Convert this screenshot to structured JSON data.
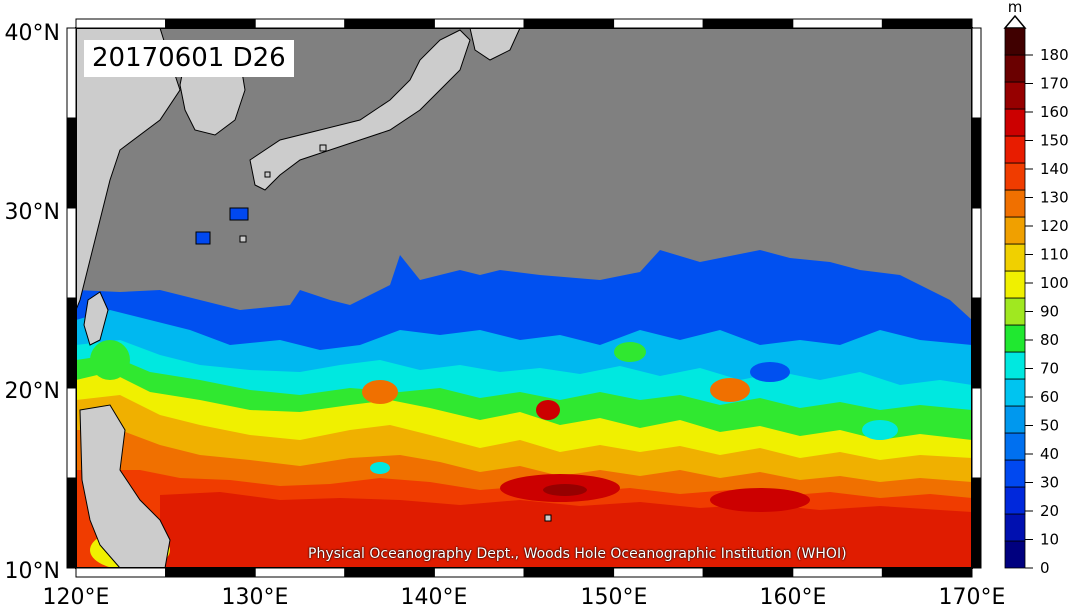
{
  "map": {
    "stamp": "20170601 D26",
    "credit": "Physical Oceanography Dept., Woods Hole Oceanographic Institution (WHOI)",
    "lat_labels": [
      "40°N",
      "30°N",
      "20°N",
      "10°N"
    ],
    "lon_labels": [
      "120°E",
      "130°E",
      "140°E",
      "150°E",
      "160°E",
      "170°E"
    ],
    "extent": {
      "lon_min": 120,
      "lon_max": 170,
      "lat_min": 10,
      "lat_max": 40
    },
    "colors": {
      "land": "#cccccc",
      "masked": "#808080"
    }
  },
  "colorbar": {
    "unit": "m",
    "ticks": [
      "0",
      "10",
      "20",
      "30",
      "40",
      "50",
      "60",
      "70",
      "80",
      "90",
      "100",
      "110",
      "120",
      "130",
      "140",
      "150",
      "160",
      "170",
      "180"
    ],
    "colors": [
      "#00007f",
      "#0010b0",
      "#0028dc",
      "#0048f0",
      "#0070f0",
      "#0098ee",
      "#00c4f0",
      "#00e8e0",
      "#20e830",
      "#a0e820",
      "#f0f000",
      "#f0d000",
      "#f0a000",
      "#f07000",
      "#f03c00",
      "#e81c00",
      "#cc0000",
      "#960000",
      "#6a0000",
      "#400000"
    ]
  }
}
